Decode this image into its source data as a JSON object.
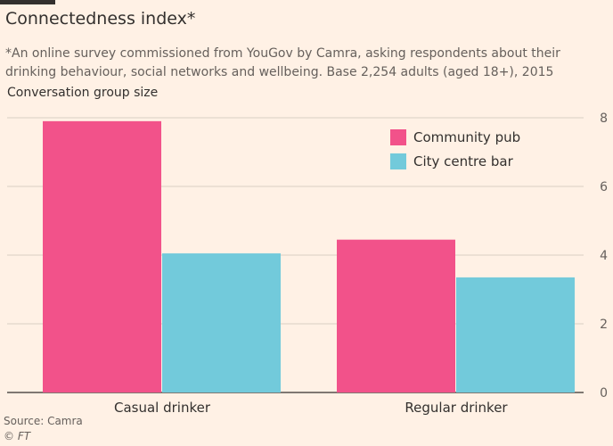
{
  "title": "Connectedness index*",
  "subtitle": "*An online survey commissioned from YouGov by Camra, asking respondents about their drinking behaviour, social networks and wellbeing. Base 2,254 adults (aged 18+), 2015",
  "source": "Source: Camra",
  "credit": "© FT",
  "colors": {
    "community_pub": "#f2528a",
    "city_centre_bar": "#72cadb",
    "background": "#fff1e5",
    "grid": "#d9cec4"
  },
  "chart_data": {
    "type": "bar",
    "title": "Connectedness index*",
    "ylabel": "Conversation group size",
    "xlabel": "",
    "categories": [
      "Casual drinker",
      "Regular drinker"
    ],
    "series": [
      {
        "name": "Community pub",
        "values": [
          7.9,
          4.45
        ]
      },
      {
        "name": "City centre bar",
        "values": [
          4.05,
          3.35
        ]
      }
    ],
    "ylim": [
      0,
      8
    ],
    "yticks": [
      "0",
      "2",
      "4",
      "6",
      "8"
    ],
    "grid": true,
    "legend_position": "top-right"
  }
}
